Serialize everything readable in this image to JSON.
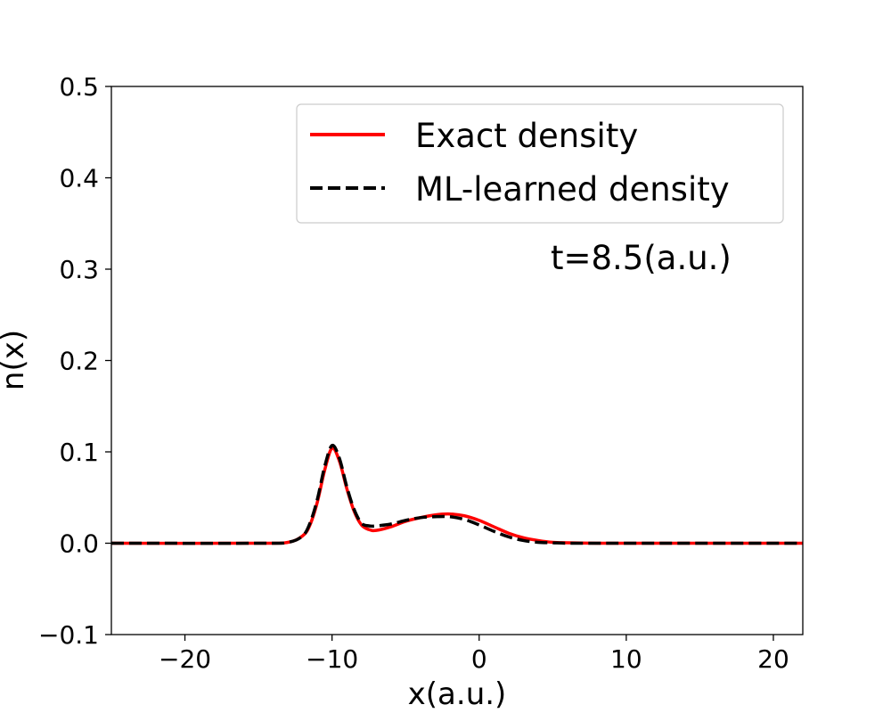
{
  "chart_data": {
    "type": "line",
    "title": "",
    "xlabel": "x(a.u.)",
    "ylabel": "n(x)",
    "xlim": [
      -25,
      22
    ],
    "ylim": [
      -0.1,
      0.5
    ],
    "x_ticks": [
      -20,
      -10,
      0,
      10,
      20
    ],
    "x_tick_labels": [
      "−20",
      "−10",
      "0",
      "10",
      "20"
    ],
    "y_ticks": [
      -0.1,
      0.0,
      0.1,
      0.2,
      0.3,
      0.4,
      0.5
    ],
    "y_tick_labels": [
      "−0.1",
      "0.0",
      "0.1",
      "0.2",
      "0.3",
      "0.4",
      "0.5"
    ],
    "grid": false,
    "legend_position": "top-right",
    "annotation": "t=8.5(a.u.)",
    "series": [
      {
        "name": "Exact density",
        "color": "#ff0000",
        "style": "solid",
        "x": [
          -25,
          -15,
          -13,
          -12,
          -11.5,
          -11,
          -10.5,
          -10,
          -9.5,
          -9,
          -8.5,
          -8,
          -7.5,
          -7,
          -6,
          -5,
          -4,
          -3,
          -2,
          -1,
          0,
          1,
          2,
          3,
          4,
          5,
          6,
          8,
          10,
          15,
          22
        ],
        "y": [
          0,
          0,
          0.001,
          0.008,
          0.02,
          0.045,
          0.08,
          0.104,
          0.09,
          0.06,
          0.035,
          0.02,
          0.015,
          0.014,
          0.018,
          0.024,
          0.028,
          0.031,
          0.032,
          0.03,
          0.025,
          0.018,
          0.011,
          0.006,
          0.003,
          0.001,
          0.0005,
          0,
          0,
          0,
          0
        ]
      },
      {
        "name": "ML-learned density",
        "color": "#000000",
        "style": "dashed",
        "x": [
          -25,
          -15,
          -13,
          -12,
          -11.5,
          -11,
          -10.5,
          -10,
          -9.5,
          -9,
          -8.5,
          -8,
          -7.5,
          -7,
          -6,
          -5,
          -4,
          -3,
          -2,
          -1,
          0,
          1,
          2,
          3,
          4,
          5,
          6,
          8,
          10,
          15,
          22
        ],
        "y": [
          0,
          0,
          0.001,
          0.008,
          0.022,
          0.048,
          0.084,
          0.107,
          0.093,
          0.062,
          0.037,
          0.022,
          0.019,
          0.019,
          0.021,
          0.025,
          0.028,
          0.029,
          0.029,
          0.026,
          0.02,
          0.013,
          0.007,
          0.003,
          0.001,
          0.0005,
          0,
          0,
          0,
          0,
          0
        ]
      }
    ]
  }
}
